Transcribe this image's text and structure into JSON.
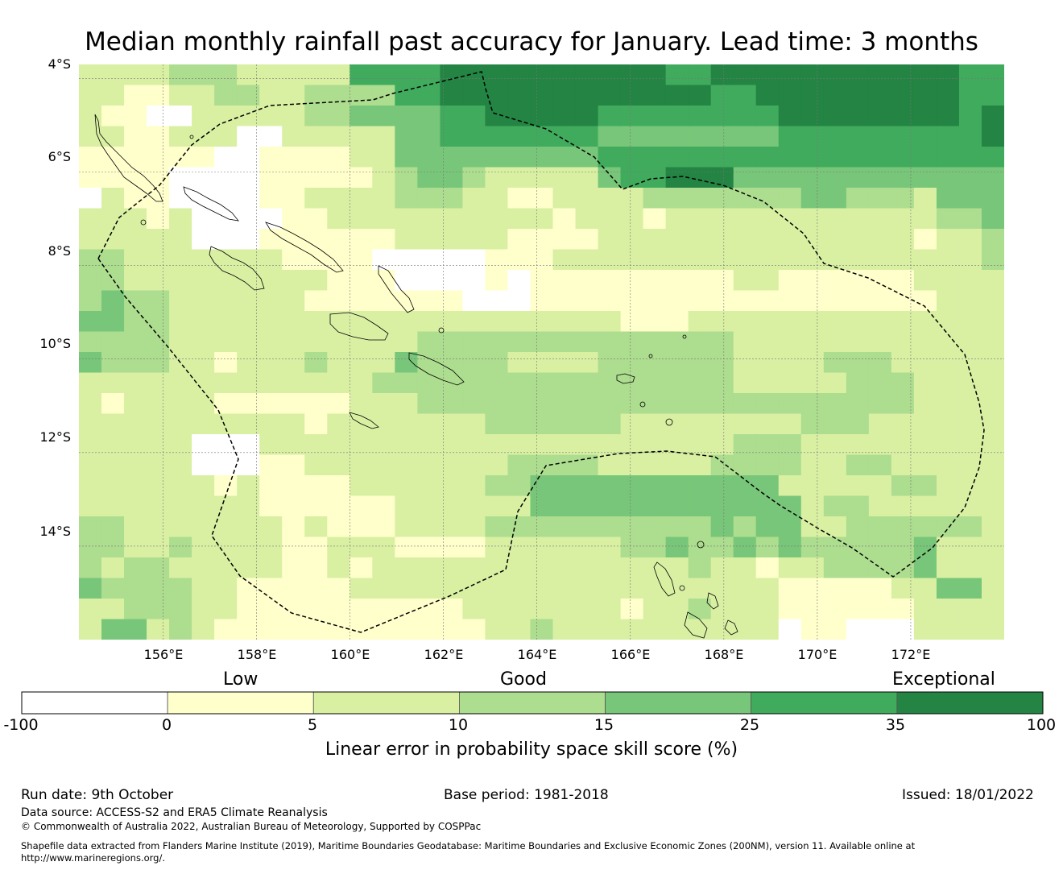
{
  "title": "Median monthly rainfall past accuracy for January. Lead time: 3 months",
  "lat_labels": [
    "4°S",
    "6°S",
    "8°S",
    "10°S",
    "12°S",
    "14°S"
  ],
  "lon_labels": [
    "156°E",
    "158°E",
    "160°E",
    "162°E",
    "164°E",
    "166°E",
    "168°E",
    "170°E",
    "172°E"
  ],
  "category_labels": {
    "low": "Low",
    "good": "Good",
    "exceptional": "Exceptional"
  },
  "colorbar": {
    "ticks": [
      "-100",
      "0",
      "5",
      "10",
      "15",
      "25",
      "35",
      "100"
    ],
    "colors": [
      "#ffffff",
      "#ffffcc",
      "#d9f0a3",
      "#addd8e",
      "#78c679",
      "#41ab5d",
      "#238443"
    ],
    "label": "Linear error in probability space skill score (%)"
  },
  "footer": {
    "run_date": "Run date: 9th October",
    "base_period": "Base period: 1981-2018",
    "issued": "Issued: 18/01/2022",
    "data_source": "Data source: ACCESS-S2 and ERA5 Climate Reanalysis",
    "copyright": "© Commonwealth of Australia 2022, Australian Bureau of Meteorology, Supported by COSPPac",
    "shapefile_line1": "Shapefile data extracted from Flanders Marine Institute (2019), Maritime Boundaries Geodatabase: Maritime Boundaries and Exclusive Economic Zones (200NM), version 11. Available online at",
    "shapefile_line2": "http://www.marineregions.org/."
  },
  "chart_data": {
    "type": "heatmap",
    "lon_range": [
      154.2,
      174.0
    ],
    "lat_range": [
      -16.0,
      -3.7
    ],
    "cell_size_deg": [
      0.833,
      0.556
    ],
    "value_scale": "category index 0-6 (0:<0, 1:0-5, 2:5-10, 3:10-15, 4:15-25, 5:25-35, 6:>35)",
    "grid": [
      "22223332222255556666666666556666666666655",
      "22112233223333556666666666665566666666655",
      "21100222223344445566666555555556666666656",
      "22112220022222445555555444444445555555556",
      "11111100111122444444444555555555555555555",
      "11110000111112344322222455666444444444444",
      "02110000112222333221122223333333443332444",
      "22212000011222222222212221222222222222334",
      "22222000111111222221111222222222222221223",
      "33222222211110000011122222222222222222223",
      "33222222222111000010111111111221111112222",
      "34332222221111111000111111111111111111222",
      "44332222222222222222222211122222222222222",
      "33332222222222233333333333333222222222222",
      "43332212223222433332222333333222233322222",
      "22222222222223333333333333333222223332222",
      "21222211111122233333333333333333333332222",
      "22222222221222222233333322222222333222222",
      "22222000222222222222222222222333222222222",
      "22222000112222222223333222223333223322222",
      "22222212111122222233444444444442222233222",
      "22222222111111222222444444444444233222222",
      "33222222212111222233333333334344223333332",
      "33223222211222111122222233433434333334222",
      "32332222211212222222222222232212233334222",
      "43333221111122222222222222222221111122442",
      "22333221111111111222222212232221111112222",
      "24423211111111111122322222222220110002222"
    ]
  }
}
